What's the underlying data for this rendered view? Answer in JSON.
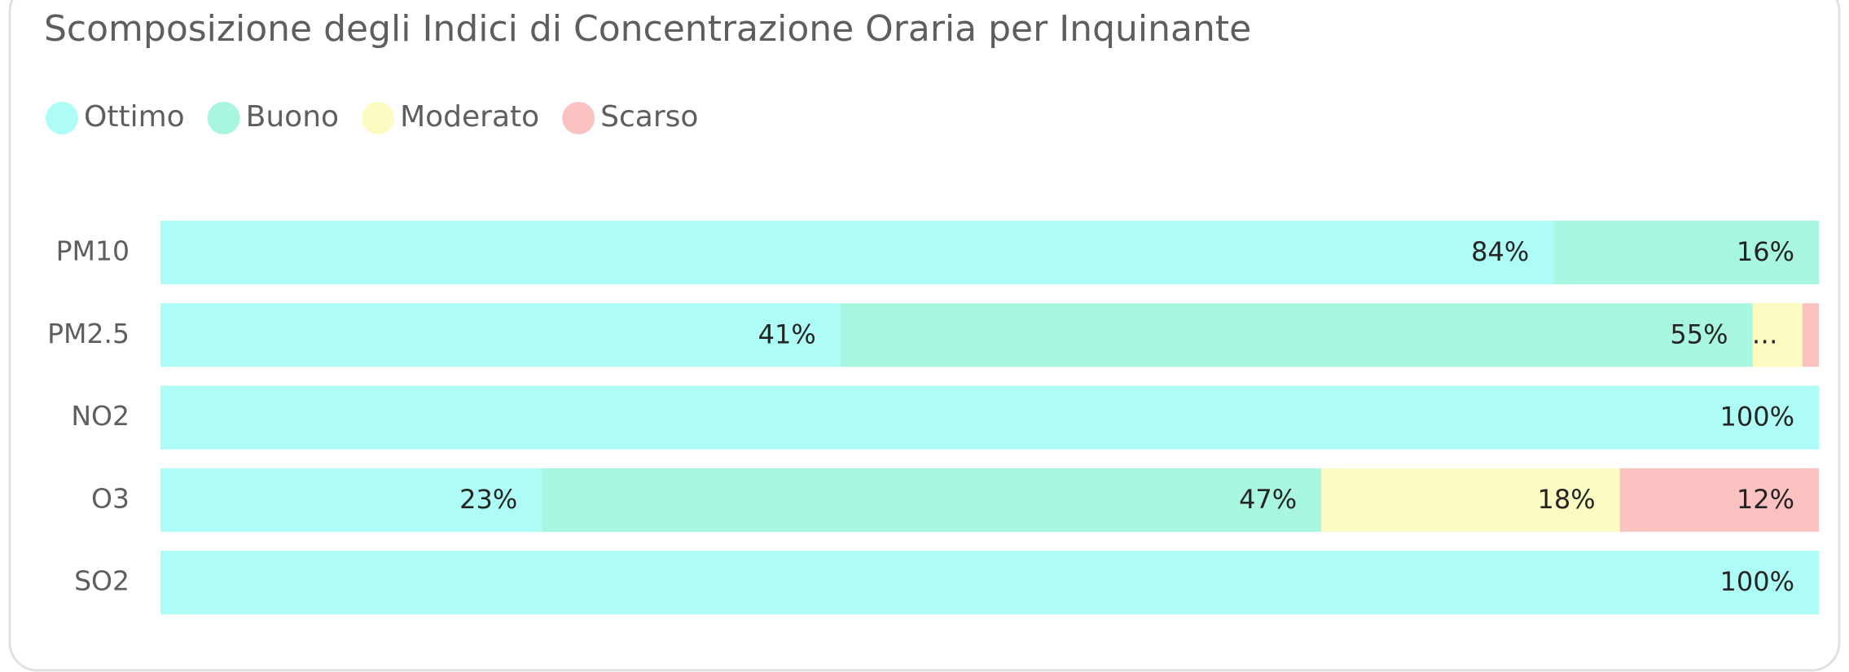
{
  "chart_data": {
    "type": "stacked_bar_horizontal",
    "title": "Scomposizione degli Indici di Concentrazione Oraria per Inquinante",
    "categories": [
      "PM10",
      "PM2.5",
      "NO2",
      "O3",
      "SO2"
    ],
    "xlim": [
      0,
      100
    ],
    "legend": "top-left",
    "series": [
      {
        "name": "Ottimo",
        "color": "#adfcf5",
        "values": [
          84,
          41,
          100,
          23,
          100
        ],
        "value_labels": [
          "84%",
          "41%",
          "100%",
          "23%",
          "100%"
        ]
      },
      {
        "name": "Buono",
        "color": "#a8f5e0",
        "values": [
          16,
          55,
          0,
          47,
          0
        ],
        "value_labels": [
          "16%",
          "55%",
          null,
          "47%",
          null
        ]
      },
      {
        "name": "Moderato",
        "color": "#fbfbc2",
        "values": [
          0,
          3,
          0,
          18,
          0
        ],
        "value_labels": [
          null,
          "…",
          null,
          "18%",
          null
        ]
      },
      {
        "name": "Scarso",
        "color": "#fbc2c2",
        "values": [
          0,
          1,
          0,
          12,
          0
        ],
        "value_labels": [
          null,
          null,
          null,
          "12%",
          null
        ]
      }
    ]
  }
}
